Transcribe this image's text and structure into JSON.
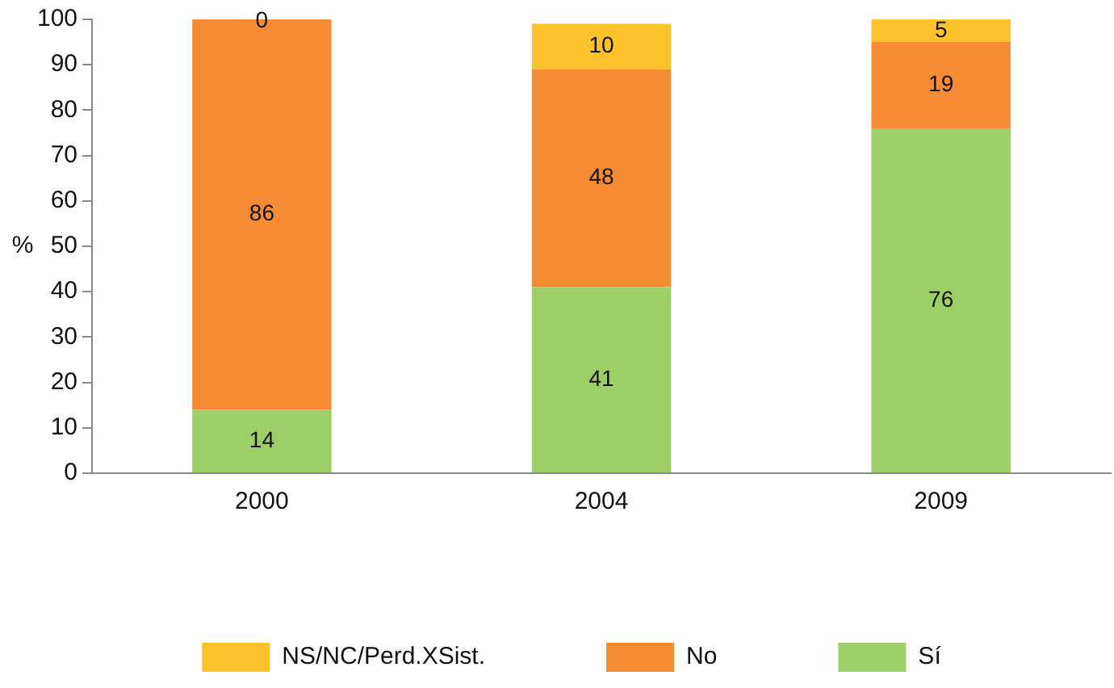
{
  "chart_data": {
    "type": "bar",
    "stacked": true,
    "ylabel": "%",
    "categories": [
      "2000",
      "2004",
      "2009"
    ],
    "series": [
      {
        "name": "Sí",
        "color": "#9ecf67",
        "values": [
          14,
          41,
          76
        ]
      },
      {
        "name": "No",
        "color": "#f58b33",
        "values": [
          86,
          48,
          19
        ]
      },
      {
        "name": "NS/NC/Perd.XSist.",
        "color": "#fdc12b",
        "values": [
          0,
          10,
          5
        ]
      }
    ],
    "ylim": [
      0,
      100
    ],
    "yticks": [
      0,
      10,
      20,
      30,
      40,
      50,
      60,
      70,
      80,
      90,
      100
    ],
    "grid": false,
    "legend": "bottom",
    "data_labels": true
  }
}
